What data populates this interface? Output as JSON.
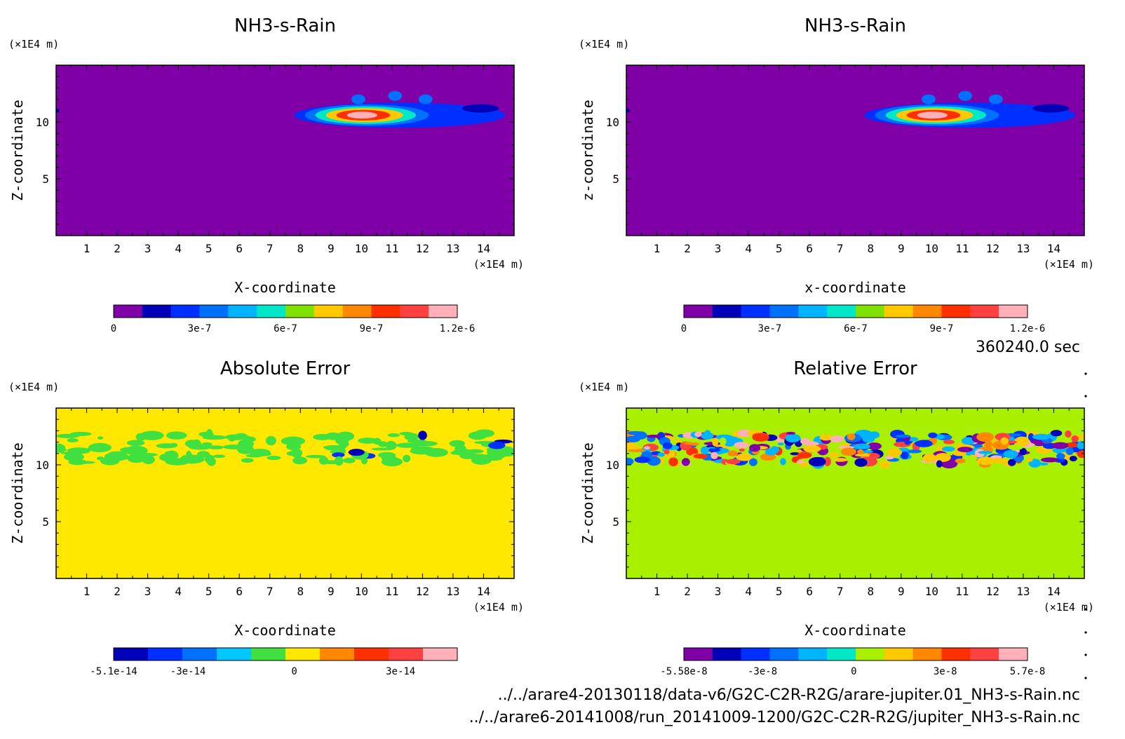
{
  "chart_data": [
    {
      "type": "heatmap",
      "title": "NH3-s-Rain",
      "xlabel": "X-coordinate",
      "ylabel": "Z-coordinate",
      "x_unit": "(×1E4 m)",
      "y_unit": "(×1E4 m)",
      "xlim": [
        0,
        15
      ],
      "ylim": [
        0,
        15
      ],
      "x_ticks": [
        "1",
        "2",
        "3",
        "4",
        "5",
        "6",
        "7",
        "8",
        "9",
        "10",
        "11",
        "12",
        "13",
        "14"
      ],
      "y_ticks": [
        "5",
        "10"
      ],
      "background_value": 0,
      "feature": {
        "description_values": [
          0,
          1.2e-06
        ],
        "x_range": [
          7.8,
          14.7
        ],
        "z_center": 10.6,
        "peak_x": 10.1,
        "peak_value": 1.15e-06
      },
      "colorbar": {
        "colors": [
          "#8000a8",
          "#0000b8",
          "#0030ff",
          "#0070ff",
          "#00b4ff",
          "#00e8c8",
          "#80e000",
          "#ffc800",
          "#ff8800",
          "#ff3000",
          "#ff4040",
          "#ffb0b8"
        ],
        "ticks": [
          "0",
          "3e-7",
          "6e-7",
          "9e-7",
          "1.2e-6"
        ],
        "tick_values": [
          0,
          3e-07,
          6e-07,
          9e-07,
          1.2e-06
        ],
        "range": [
          0,
          1.2e-06
        ]
      },
      "background_color": "#8000a8"
    },
    {
      "type": "heatmap",
      "title": "NH3-s-Rain",
      "xlabel": "x-coordinate",
      "ylabel": "z-coordinate",
      "x_unit": "(×1E4 m)",
      "y_unit": "(×1E4 m)",
      "xlim": [
        0,
        15
      ],
      "ylim": [
        0,
        15
      ],
      "x_ticks": [
        "1",
        "2",
        "3",
        "4",
        "5",
        "6",
        "7",
        "8",
        "9",
        "10",
        "11",
        "12",
        "13",
        "14"
      ],
      "y_ticks": [
        "5",
        "10"
      ],
      "background_value": 0,
      "feature": {
        "x_range": [
          7.8,
          14.7
        ],
        "z_center": 10.6,
        "peak_x": 10.1,
        "peak_value": 1.15e-06
      },
      "colorbar": {
        "colors": [
          "#8000a8",
          "#0000b8",
          "#0030ff",
          "#0070ff",
          "#00b4ff",
          "#00e8c8",
          "#80e000",
          "#ffc800",
          "#ff8800",
          "#ff3000",
          "#ff4040",
          "#ffb0b8"
        ],
        "ticks": [
          "0",
          "3e-7",
          "6e-7",
          "9e-7",
          "1.2e-6"
        ],
        "tick_values": [
          0,
          3e-07,
          6e-07,
          9e-07,
          1.2e-06
        ],
        "range": [
          0,
          1.2e-06
        ]
      },
      "background_color": "#8000a8"
    },
    {
      "type": "heatmap",
      "title": "Absolute Error",
      "xlabel": "X-coordinate",
      "ylabel": "Z-coordinate",
      "x_unit": "(×1E4 m)",
      "y_unit": "(×1E4 m)",
      "xlim": [
        0,
        15
      ],
      "ylim": [
        0,
        15
      ],
      "x_ticks": [
        "1",
        "2",
        "3",
        "4",
        "5",
        "6",
        "7",
        "8",
        "9",
        "10",
        "11",
        "12",
        "13",
        "14"
      ],
      "y_ticks": [
        "5",
        "10"
      ],
      "background_value": 0,
      "band": {
        "z_range": [
          10.2,
          12.8
        ],
        "value_range": [
          -5.1e-14,
          3e-14
        ]
      },
      "colorbar": {
        "colors": [
          "#0000b8",
          "#0030ff",
          "#0070ff",
          "#00c8ff",
          "#40e040",
          "#ffe800",
          "#ff8800",
          "#ff3000",
          "#ff4040",
          "#ffb0b8"
        ],
        "ticks": [
          "-5.1e-14",
          "-3e-14",
          "0",
          "3e-14"
        ],
        "tick_values": [
          -5.1e-14,
          -3e-14,
          0,
          3e-14
        ],
        "range": [
          -5.1e-14,
          4.6e-14
        ]
      },
      "background_color": "#ffe800"
    },
    {
      "type": "heatmap",
      "title": "Relative Error",
      "xlabel": "X-coordinate",
      "ylabel": "Z-coordinate",
      "x_unit": "(×1E4 m)",
      "y_unit": "(×1E4 m)",
      "xlim": [
        0,
        15
      ],
      "ylim": [
        0,
        15
      ],
      "x_ticks": [
        "1",
        "2",
        "3",
        "4",
        "5",
        "6",
        "7",
        "8",
        "9",
        "10",
        "11",
        "12",
        "13",
        "14"
      ],
      "y_ticks": [
        "5",
        "10"
      ],
      "background_value": 0,
      "band": {
        "z_range": [
          10.0,
          12.8
        ],
        "value_range": [
          -5.58e-08,
          5.7e-08
        ]
      },
      "colorbar": {
        "colors": [
          "#8000a8",
          "#0000b8",
          "#0030ff",
          "#0070ff",
          "#00b4ff",
          "#00e8c8",
          "#a8f000",
          "#ffc800",
          "#ff8800",
          "#ff3000",
          "#ff4040",
          "#ffb0b8"
        ],
        "ticks": [
          "-5.58e-8",
          "-3e-8",
          "0",
          "3e-8",
          "5.7e-8"
        ],
        "tick_values": [
          -5.58e-08,
          -3e-08,
          0,
          3e-08,
          5.7e-08
        ],
        "range": [
          -5.58e-08,
          5.7e-08
        ]
      },
      "background_color": "#a8f000"
    }
  ],
  "time_label": "360240.0 sec",
  "files": [
    "../../arare4-20130118/data-v6/G2C-C2R-R2G/arare-jupiter.01_NH3-s-Rain.nc",
    "../../arare6-20141008/run_20141009-1200/G2C-C2R-R2G/jupiter_NH3-s-Rain.nc"
  ]
}
